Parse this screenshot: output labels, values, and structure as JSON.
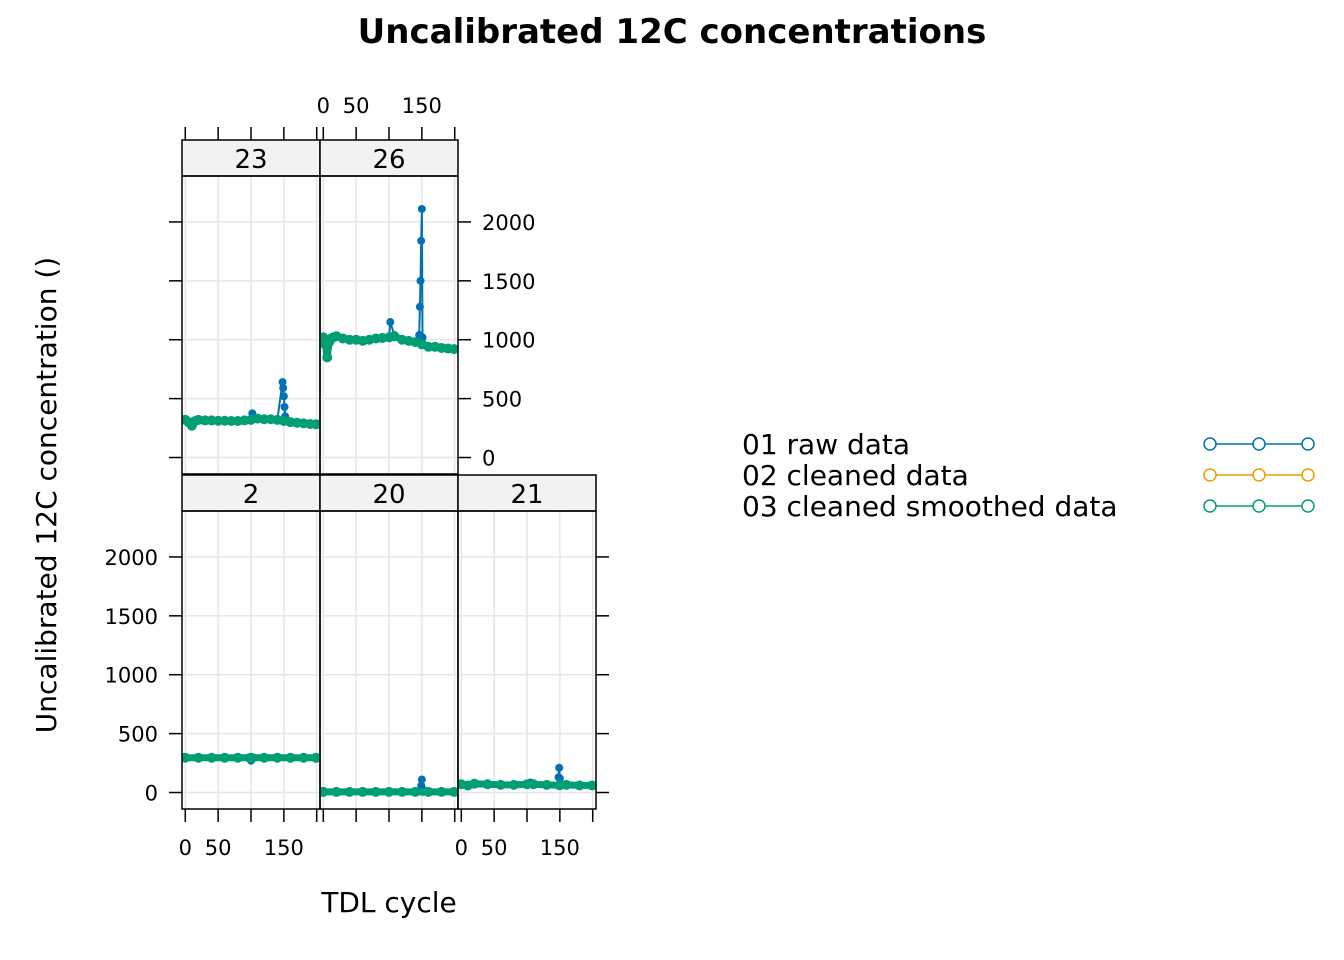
{
  "chart_data": {
    "type": "line",
    "title": "Uncalibrated 12C concentrations",
    "xlabel": "TDL cycle",
    "ylabel": "Uncalibrated 12C concentration ()",
    "xlim": [
      -5,
      205
    ],
    "ylim": [
      -140,
      2390
    ],
    "x_ticks": [
      0,
      50,
      100,
      150,
      200
    ],
    "x_tick_labels": [
      "0",
      "50",
      "",
      "150",
      ""
    ],
    "y_ticks": [
      0,
      500,
      1000,
      1500,
      2000
    ],
    "y_tick_labels": [
      "0",
      "500",
      "1000",
      "1500",
      "2000"
    ],
    "grid": true,
    "legend_position": "right",
    "legend": [
      {
        "name": "01 raw data",
        "color": "#0072B2"
      },
      {
        "name": "02 cleaned data",
        "color": "#E69F00"
      },
      {
        "name": "03 cleaned smoothed data",
        "color": "#009E73"
      }
    ],
    "panels": [
      {
        "label": "23",
        "series": [
          {
            "name": "01 raw data",
            "x": [
              0,
              5,
              10,
              15,
              20,
              30,
              40,
              50,
              60,
              70,
              80,
              90,
              100,
              102,
              110,
              120,
              130,
              140,
              148,
              149,
              150,
              151,
              152,
              153,
              160,
              170,
              180,
              190,
              199
            ],
            "y": [
              320,
              300,
              270,
              310,
              320,
              315,
              315,
              312,
              312,
              310,
              310,
              315,
              320,
              375,
              330,
              325,
              325,
              320,
              640,
              590,
              520,
              430,
              350,
              310,
              300,
              295,
              290,
              285,
              282
            ]
          },
          {
            "name": "03 cleaned smoothed data",
            "x": [
              0,
              5,
              10,
              15,
              20,
              30,
              40,
              50,
              60,
              70,
              80,
              90,
              100,
              110,
              120,
              130,
              140,
              150,
              160,
              170,
              180,
              190,
              199
            ],
            "y": [
              320,
              300,
              270,
              310,
              320,
              315,
              315,
              312,
              312,
              310,
              310,
              315,
              320,
              330,
              325,
              325,
              320,
              310,
              300,
              295,
              290,
              285,
              282
            ]
          }
        ]
      },
      {
        "label": "26",
        "series": [
          {
            "name": "01 raw data",
            "x": [
              0,
              3,
              6,
              9,
              12,
              15,
              20,
              30,
              40,
              50,
              60,
              70,
              80,
              90,
              100,
              102,
              108,
              120,
              130,
              145,
              146,
              147,
              148,
              149,
              150,
              151,
              160,
              170,
              180,
              190,
              199
            ],
            "y": [
              1020,
              960,
              850,
              980,
              1010,
              1020,
              1030,
              1010,
              1000,
              1000,
              990,
              1000,
              1010,
              1015,
              1020,
              1150,
              1040,
              1000,
              990,
              980,
              1040,
              1280,
              1500,
              1840,
              2110,
              1020,
              940,
              940,
              930,
              925,
              920
            ]
          },
          {
            "name": "03 cleaned smoothed data",
            "x": [
              0,
              3,
              6,
              9,
              12,
              15,
              20,
              30,
              40,
              50,
              60,
              70,
              80,
              90,
              100,
              108,
              120,
              130,
              140,
              150,
              160,
              170,
              180,
              190,
              199
            ],
            "y": [
              1020,
              960,
              850,
              980,
              1010,
              1020,
              1030,
              1010,
              1000,
              1000,
              990,
              1000,
              1010,
              1015,
              1020,
              1030,
              1000,
              990,
              980,
              960,
              940,
              940,
              930,
              925,
              920
            ]
          }
        ]
      },
      {
        "label": "2",
        "series": [
          {
            "name": "01 raw data",
            "x": [
              0,
              20,
              40,
              60,
              80,
              95,
              100,
              105,
              120,
              140,
              160,
              180,
              199
            ],
            "y": [
              295,
              295,
              295,
              295,
              295,
              295,
              270,
              295,
              295,
              295,
              295,
              295,
              295
            ]
          },
          {
            "name": "03 cleaned smoothed data",
            "x": [
              0,
              20,
              40,
              60,
              80,
              100,
              120,
              140,
              160,
              180,
              199
            ],
            "y": [
              295,
              295,
              295,
              295,
              295,
              295,
              295,
              295,
              295,
              295,
              295
            ]
          }
        ]
      },
      {
        "label": "20",
        "series": [
          {
            "name": "01 raw data",
            "x": [
              0,
              20,
              40,
              60,
              80,
              100,
              120,
              140,
              148,
              149,
              150,
              151,
              152,
              160,
              180,
              199
            ],
            "y": [
              5,
              5,
              5,
              5,
              5,
              5,
              5,
              5,
              10,
              60,
              110,
              30,
              5,
              5,
              5,
              5
            ]
          },
          {
            "name": "03 cleaned smoothed data",
            "x": [
              0,
              20,
              40,
              60,
              80,
              100,
              120,
              140,
              160,
              180,
              199
            ],
            "y": [
              5,
              5,
              5,
              5,
              5,
              5,
              5,
              5,
              5,
              5,
              5
            ]
          }
        ]
      },
      {
        "label": "21",
        "series": [
          {
            "name": "01 raw data",
            "x": [
              0,
              10,
              20,
              40,
              60,
              80,
              100,
              105,
              110,
              130,
              147,
              148,
              149,
              150,
              151,
              160,
              180,
              199
            ],
            "y": [
              70,
              60,
              75,
              70,
              65,
              65,
              70,
              85,
              70,
              65,
              60,
              130,
              210,
              120,
              70,
              65,
              60,
              60
            ]
          },
          {
            "name": "03 cleaned smoothed data",
            "x": [
              0,
              10,
              20,
              40,
              60,
              80,
              100,
              110,
              130,
              150,
              160,
              180,
              199
            ],
            "y": [
              70,
              60,
              75,
              70,
              65,
              65,
              70,
              70,
              65,
              62,
              65,
              60,
              60
            ]
          }
        ]
      }
    ]
  }
}
